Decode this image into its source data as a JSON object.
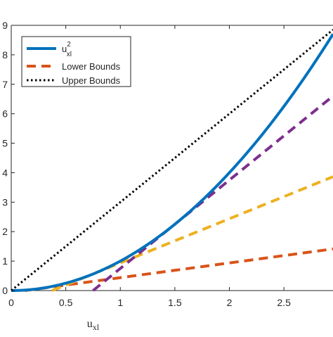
{
  "chart_data": {
    "type": "line",
    "xlabel": "u_xl",
    "xlabel_main": "u",
    "xlabel_sub": "xl",
    "ylabel": "",
    "xlim": [
      0,
      2.95
    ],
    "ylim": [
      0,
      9
    ],
    "xticks": [
      0,
      0.5,
      1,
      1.5,
      2,
      2.5
    ],
    "xtick_labels": [
      "0",
      "0.5",
      "1",
      "1.5",
      "2",
      "2.5"
    ],
    "yticks": [
      0,
      1,
      2,
      3,
      4,
      5,
      6,
      7,
      8,
      9
    ],
    "ytick_labels": [
      "0",
      "1",
      "2",
      "3",
      "4",
      "5",
      "6",
      "7",
      "8",
      "9"
    ],
    "grid": false,
    "legend_position": "top-left",
    "legend": [
      {
        "label_main": "u",
        "label_sup": "2",
        "label_sub": "xl",
        "color": "#0072BD",
        "style": "solid"
      },
      {
        "label": "Lower Bounds",
        "color": "#D95319",
        "style": "dashed"
      },
      {
        "label": "Upper Bounds",
        "color": "#000000",
        "style": "dotted"
      }
    ],
    "series": [
      {
        "key": "square",
        "formula": "x^2",
        "x_range": [
          0,
          2.95
        ],
        "color": "#0072BD",
        "style": "solid"
      },
      {
        "key": "tangent_025",
        "formula": "0.5x - 0.0625",
        "x_range": [
          0.125,
          2.95
        ],
        "color": "#D95319",
        "style": "dashed"
      },
      {
        "key": "tangent_075",
        "formula": "1.5x - 0.5625",
        "x_range": [
          0.375,
          2.95
        ],
        "color": "#EDB120",
        "style": "dashed"
      },
      {
        "key": "tangent_150",
        "formula": "3x - 2.25",
        "x_range": [
          0.75,
          2.95
        ],
        "color": "#7E2F8E",
        "style": "dashed"
      },
      {
        "key": "upper",
        "formula": "3x",
        "x_range": [
          0,
          2.95
        ],
        "color": "#000000",
        "style": "dotted"
      }
    ]
  }
}
